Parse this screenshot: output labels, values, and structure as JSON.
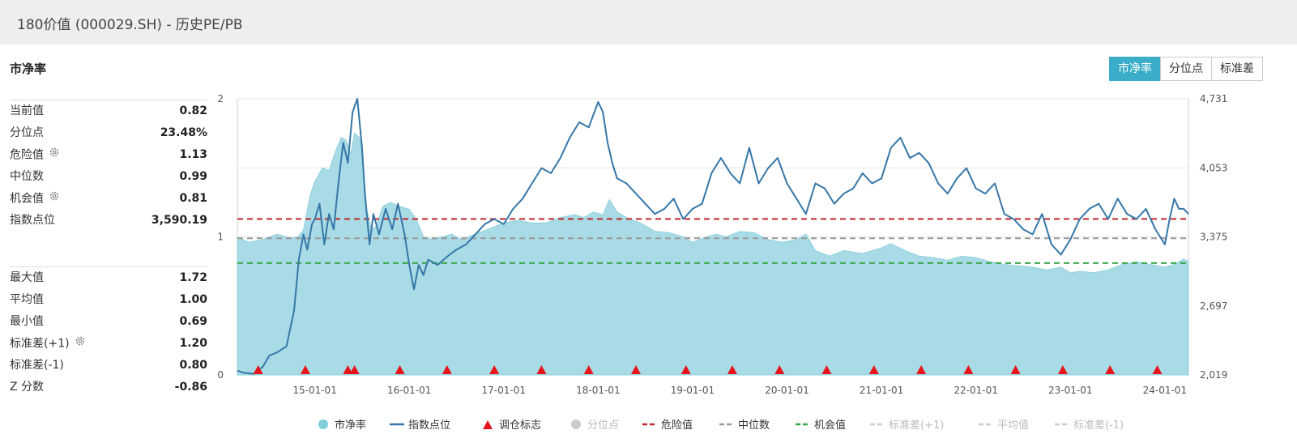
{
  "header": {
    "title": "180价值 (000029.SH) - 历史PE/PB"
  },
  "section": {
    "title": "市净率"
  },
  "tabs": [
    {
      "label": "市净率",
      "active": true
    },
    {
      "label": "分位点",
      "active": false
    },
    {
      "label": "标准差",
      "active": false
    }
  ],
  "stats_top": [
    {
      "label": "当前值",
      "value": "0.82",
      "gear": false
    },
    {
      "label": "分位点",
      "value": "23.48%",
      "gear": false
    },
    {
      "label": "危险值",
      "value": "1.13",
      "gear": true
    },
    {
      "label": "中位数",
      "value": "0.99",
      "gear": false
    },
    {
      "label": "机会值",
      "value": "0.81",
      "gear": true
    },
    {
      "label": "指数点位",
      "value": "3,590.19",
      "gear": false
    }
  ],
  "stats_bottom": [
    {
      "label": "最大值",
      "value": "1.72",
      "gear": false
    },
    {
      "label": "平均值",
      "value": "1.00",
      "gear": false
    },
    {
      "label": "最小值",
      "value": "0.69",
      "gear": false
    },
    {
      "label": "标准差(+1)",
      "value": "1.20",
      "gear": true
    },
    {
      "label": "标准差(-1)",
      "value": "0.80",
      "gear": false
    },
    {
      "label": "Z 分数",
      "value": "-0.86",
      "gear": false
    }
  ],
  "colors": {
    "area_fill": "#a8dbe5",
    "area_stroke": "#8fd0dd",
    "index_line": "#3577a8",
    "danger": "#c0282d",
    "median": "#999999",
    "opportunity": "#3aa64a",
    "marker": "#e5151b",
    "accent": "#3aaec9"
  },
  "chart_data": {
    "type": "area+line",
    "x_ticks": [
      "15-01-01",
      "16-01-01",
      "17-01-01",
      "18-01-01",
      "19-01-01",
      "20-01-01",
      "21-01-01",
      "22-01-01",
      "23-01-01",
      "24-01-01"
    ],
    "x_range": [
      2014.18,
      2024.25
    ],
    "left_axis": {
      "ticks": [
        "0",
        "1",
        "2"
      ],
      "range": [
        0,
        2
      ]
    },
    "right_axis": {
      "ticks": [
        "2,019",
        "2,697",
        "3,375",
        "4,053",
        "4,731"
      ],
      "range": [
        2019,
        4731
      ]
    },
    "series": [
      {
        "name": "市净率",
        "axis": "left",
        "type": "area",
        "x": [
          2014.18,
          2014.3,
          2014.45,
          2014.6,
          2014.75,
          2014.82,
          2014.88,
          2014.95,
          2015.0,
          2015.08,
          2015.15,
          2015.22,
          2015.28,
          2015.33,
          2015.38,
          2015.42,
          2015.47,
          2015.5,
          2015.55,
          2015.6,
          2015.65,
          2015.72,
          2015.8,
          2015.9,
          2016.0,
          2016.08,
          2016.15,
          2016.25,
          2016.35,
          2016.45,
          2016.55,
          2016.7,
          2016.85,
          2017.0,
          2017.15,
          2017.3,
          2017.45,
          2017.6,
          2017.75,
          2017.85,
          2017.95,
          2018.05,
          2018.12,
          2018.2,
          2018.3,
          2018.45,
          2018.6,
          2018.75,
          2018.9,
          2019.0,
          2019.15,
          2019.25,
          2019.35,
          2019.5,
          2019.65,
          2019.8,
          2019.95,
          2020.1,
          2020.2,
          2020.3,
          2020.45,
          2020.6,
          2020.8,
          2021.0,
          2021.1,
          2021.25,
          2021.4,
          2021.55,
          2021.7,
          2021.85,
          2022.0,
          2022.15,
          2022.3,
          2022.45,
          2022.6,
          2022.75,
          2022.9,
          2023.0,
          2023.1,
          2023.25,
          2023.4,
          2023.55,
          2023.7,
          2023.85,
          2024.0,
          2024.1,
          2024.2,
          2024.25
        ],
        "y": [
          1.0,
          0.96,
          0.98,
          1.02,
          0.99,
          1.0,
          1.05,
          1.3,
          1.4,
          1.5,
          1.48,
          1.62,
          1.72,
          1.7,
          1.6,
          1.75,
          1.72,
          1.62,
          1.2,
          1.05,
          1.08,
          1.22,
          1.25,
          1.22,
          1.2,
          1.12,
          1.0,
          0.98,
          1.0,
          1.02,
          0.98,
          1.02,
          1.06,
          1.1,
          1.12,
          1.1,
          1.1,
          1.14,
          1.16,
          1.14,
          1.18,
          1.16,
          1.27,
          1.18,
          1.14,
          1.1,
          1.04,
          1.03,
          1.0,
          0.96,
          1.0,
          1.02,
          1.0,
          1.04,
          1.03,
          0.98,
          0.96,
          0.98,
          1.02,
          0.9,
          0.86,
          0.9,
          0.88,
          0.92,
          0.95,
          0.9,
          0.86,
          0.85,
          0.83,
          0.86,
          0.85,
          0.82,
          0.8,
          0.79,
          0.78,
          0.76,
          0.78,
          0.74,
          0.75,
          0.74,
          0.76,
          0.8,
          0.82,
          0.8,
          0.78,
          0.8,
          0.84,
          0.82
        ]
      },
      {
        "name": "指数点位",
        "axis": "right",
        "type": "line",
        "x": [
          2014.18,
          2014.25,
          2014.35,
          2014.45,
          2014.52,
          2014.6,
          2014.7,
          2014.78,
          2014.83,
          2014.88,
          2014.92,
          2014.97,
          2015.0,
          2015.05,
          2015.1,
          2015.15,
          2015.2,
          2015.25,
          2015.3,
          2015.35,
          2015.4,
          2015.45,
          2015.5,
          2015.53,
          2015.58,
          2015.62,
          2015.68,
          2015.75,
          2015.82,
          2015.88,
          2015.95,
          2016.0,
          2016.05,
          2016.1,
          2016.15,
          2016.2,
          2016.3,
          2016.4,
          2016.5,
          2016.6,
          2016.7,
          2016.8,
          2016.9,
          2017.0,
          2017.1,
          2017.2,
          2017.3,
          2017.4,
          2017.5,
          2017.6,
          2017.7,
          2017.8,
          2017.9,
          2018.0,
          2018.05,
          2018.1,
          2018.15,
          2018.2,
          2018.3,
          2018.4,
          2018.5,
          2018.6,
          2018.7,
          2018.8,
          2018.9,
          2019.0,
          2019.1,
          2019.2,
          2019.3,
          2019.4,
          2019.5,
          2019.6,
          2019.7,
          2019.8,
          2019.9,
          2020.0,
          2020.1,
          2020.2,
          2020.3,
          2020.4,
          2020.5,
          2020.6,
          2020.7,
          2020.8,
          2020.9,
          2021.0,
          2021.1,
          2021.2,
          2021.3,
          2021.4,
          2021.5,
          2021.6,
          2021.7,
          2021.8,
          2021.9,
          2022.0,
          2022.1,
          2022.2,
          2022.3,
          2022.4,
          2022.5,
          2022.6,
          2022.7,
          2022.8,
          2022.9,
          2023.0,
          2023.1,
          2023.2,
          2023.3,
          2023.4,
          2023.5,
          2023.6,
          2023.7,
          2023.8,
          2023.9,
          2024.0,
          2024.05,
          2024.1,
          2024.15,
          2024.2,
          2024.25
        ],
        "y": [
          2060,
          2040,
          2030,
          2100,
          2210,
          2240,
          2300,
          2650,
          3150,
          3400,
          3250,
          3500,
          3550,
          3700,
          3300,
          3600,
          3450,
          3900,
          4300,
          4100,
          4600,
          4731,
          4250,
          3800,
          3300,
          3600,
          3400,
          3650,
          3450,
          3700,
          3400,
          3100,
          2860,
          3100,
          3000,
          3150,
          3100,
          3180,
          3250,
          3300,
          3400,
          3500,
          3550,
          3500,
          3650,
          3750,
          3900,
          4050,
          4000,
          4150,
          4350,
          4500,
          4450,
          4700,
          4600,
          4300,
          4100,
          3950,
          3900,
          3800,
          3700,
          3600,
          3650,
          3750,
          3550,
          3650,
          3700,
          4000,
          4150,
          4000,
          3900,
          4250,
          3900,
          4050,
          4150,
          3900,
          3750,
          3600,
          3900,
          3850,
          3700,
          3800,
          3850,
          4000,
          3900,
          3950,
          4250,
          4350,
          4150,
          4200,
          4100,
          3900,
          3800,
          3950,
          4050,
          3850,
          3800,
          3900,
          3600,
          3550,
          3450,
          3400,
          3600,
          3300,
          3200,
          3350,
          3550,
          3650,
          3700,
          3550,
          3750,
          3600,
          3550,
          3650,
          3450,
          3300,
          3550,
          3750,
          3650,
          3650,
          3600
        ]
      }
    ],
    "reference_lines": [
      {
        "name": "危险值",
        "value": 1.13,
        "axis": "left",
        "style": "dashed",
        "color": "#c0282d"
      },
      {
        "name": "中位数",
        "value": 0.99,
        "axis": "left",
        "style": "dashed",
        "color": "#999999"
      },
      {
        "name": "机会值",
        "value": 0.81,
        "axis": "left",
        "style": "dashed",
        "color": "#3aa64a"
      }
    ],
    "rebalance_markers": [
      2014.4,
      2014.9,
      2015.35,
      2015.42,
      2015.9,
      2016.4,
      2016.9,
      2017.4,
      2017.9,
      2018.4,
      2018.93,
      2019.42,
      2019.92,
      2020.42,
      2020.92,
      2021.42,
      2021.92,
      2022.42,
      2022.92,
      2023.42,
      2023.92
    ],
    "legend": [
      {
        "label": "市净率",
        "type": "dot",
        "color": "#7fcedb",
        "enabled": true
      },
      {
        "label": "指数点位",
        "type": "line",
        "color": "#3577a8",
        "enabled": true
      },
      {
        "label": "调仓标志",
        "type": "triangle",
        "color": "#e5151b",
        "enabled": true
      },
      {
        "label": "分位点",
        "type": "dot",
        "color": "#cccccc",
        "enabled": false
      },
      {
        "label": "危险值",
        "type": "dash",
        "color": "#c0282d",
        "enabled": true
      },
      {
        "label": "中位数",
        "type": "dash",
        "color": "#999999",
        "enabled": true
      },
      {
        "label": "机会值",
        "type": "dash",
        "color": "#3aa64a",
        "enabled": true
      },
      {
        "label": "标准差(+1)",
        "type": "dash",
        "color": "#cccccc",
        "enabled": false
      },
      {
        "label": "平均值",
        "type": "dash",
        "color": "#cccccc",
        "enabled": false
      },
      {
        "label": "标准差(-1)",
        "type": "dash",
        "color": "#cccccc",
        "enabled": false
      }
    ]
  }
}
